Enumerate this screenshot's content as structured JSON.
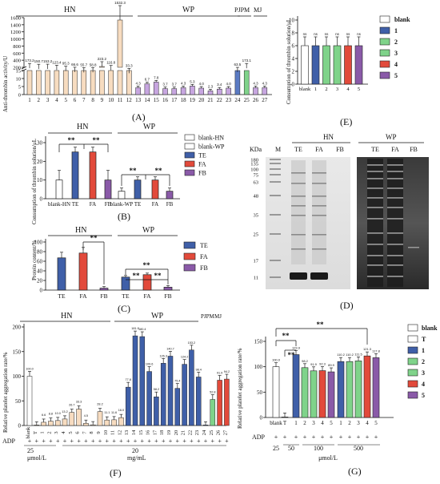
{
  "colors": {
    "blue": "#3f5fa8",
    "red": "#e24a3b",
    "green": "#7fd38a",
    "orange": "#e58a3a",
    "purple": "#8a5aa8",
    "bar_light": "#f7dcc0",
    "bar_edge": "#222222",
    "gel_dark": "#1a1a1a"
  },
  "chart_data": [
    {
      "panel": "A",
      "type": "bar",
      "groups": [
        "HN",
        "WP",
        "PJPM",
        "MJ"
      ],
      "ylabel": "Anti-thrombin activity/U",
      "yticks_upper": [
        200,
        400,
        600,
        800,
        1000,
        1200,
        1400,
        1600
      ],
      "yticks_lower": [
        0,
        5,
        10,
        15
      ],
      "categories": [
        "1",
        "2",
        "3",
        "4",
        "5",
        "6",
        "7",
        "8",
        "9",
        "10",
        "11",
        "12",
        "13",
        "14",
        "15",
        "16",
        "17",
        "18",
        "19",
        "20",
        "21",
        "22",
        "23",
        "24",
        "25",
        "26",
        "27"
      ],
      "values": [
        173.2,
        150.7,
        153.2,
        123.4,
        95.3,
        66.6,
        55.7,
        58.8,
        223.2,
        116.8,
        1532.3,
        33.3,
        4.3,
        6.7,
        7.8,
        3.7,
        3.7,
        4.3,
        5.3,
        4.0,
        2.3,
        3.4,
        4.0,
        63.5,
        173.1,
        4.3,
        4.3
      ],
      "value_labels": [
        "173.2",
        "150.7",
        "153.2",
        "123.4",
        "95.3",
        "66.6",
        "55.7",
        "58.8",
        "223.2",
        "116.8",
        "1532.3",
        "33.3",
        "4.3",
        "6.7",
        "7.8",
        "3.7",
        "3.7",
        "4.3",
        "5.3",
        "4.0",
        "2.3",
        "3.4",
        "4.0",
        "63.5",
        "173.1",
        "4.3",
        "4.3"
      ],
      "label": "(A)"
    },
    {
      "panel": "E",
      "type": "bar",
      "ylabel": "Consumption of thrombin solution/μL",
      "categories": [
        "blank",
        "1",
        "2",
        "3",
        "4",
        "5"
      ],
      "values": [
        6,
        6,
        6,
        6,
        6,
        6
      ],
      "legend": [
        "blank",
        "1",
        "2",
        "3",
        "4",
        "5"
      ],
      "ylim": [
        0,
        10
      ],
      "yticks": [
        0,
        2,
        4,
        6,
        8,
        10
      ],
      "sig": "ns",
      "label": "(E)"
    },
    {
      "panel": "B",
      "type": "bar",
      "groups": [
        "HN",
        "WP"
      ],
      "ylabel": "Consumption of thrombin solution/μL",
      "categories": [
        "blank-HN",
        "TE",
        "FA",
        "FB",
        "blank-WP",
        "TE",
        "FA",
        "FB"
      ],
      "values": [
        10,
        25,
        25,
        10,
        4,
        10,
        10,
        4
      ],
      "ylim": [
        0,
        30
      ],
      "yticks": [
        0,
        10,
        20,
        30
      ],
      "legend": [
        "blank-HN",
        "blank-WP",
        "TE",
        "FA",
        "FB"
      ],
      "sig": "**",
      "label": "(B)"
    },
    {
      "panel": "C",
      "type": "bar",
      "groups": [
        "HN",
        "WP"
      ],
      "ylabel": "Protein content/%",
      "categories": [
        "TE",
        "FA",
        "FB",
        "TE",
        "FA",
        "FB"
      ],
      "values": [
        67,
        77,
        4,
        27,
        32,
        6
      ],
      "ylim": [
        0,
        100
      ],
      "yticks": [
        0,
        20,
        40,
        60,
        80,
        100
      ],
      "legend": [
        "TE",
        "FA",
        "FB"
      ],
      "sig": "**",
      "label": "(C)"
    },
    {
      "panel": "F",
      "type": "bar",
      "groups": [
        "HN",
        "WP",
        "PJPM",
        "MJ"
      ],
      "ylabel": "Relative platelet aggregation rate/%",
      "categories": [
        "blank",
        "T",
        "1",
        "2",
        "3",
        "4",
        "5",
        "6",
        "7",
        "8",
        "9",
        "10",
        "11",
        "12",
        "13",
        "14",
        "15",
        "16",
        "17",
        "18",
        "19",
        "20",
        "21",
        "22",
        "23",
        "24",
        "25",
        "26",
        "27"
      ],
      "values": [
        100.0,
        1,
        6.6,
        8.8,
        10.0,
        13.2,
        26.7,
        33.3,
        4.5,
        1.4,
        28.2,
        11.1,
        11.6,
        16.0,
        77.8,
        181.9,
        180.4,
        109.6,
        58.2,
        126.3,
        140.7,
        75.4,
        124.2,
        153.2,
        98.4,
        1.1,
        52.8,
        91.9,
        94.2
      ],
      "value_labels": [
        "100.0",
        "",
        "6.6",
        "8.8",
        "10.0",
        "13.2",
        "26.7",
        "33.3",
        "4.5",
        "",
        "28.2",
        "11.1",
        "11.6",
        "16.0",
        "77.8",
        "181.9",
        "180.4",
        "109.6",
        "58.2",
        "126.3",
        "140.7",
        "75.4",
        "124.2",
        "153.2",
        "98.4",
        "",
        "52.8",
        "91.9",
        "94.2"
      ],
      "ylim": [
        0,
        200
      ],
      "yticks": [
        0,
        50,
        100,
        150,
        200
      ],
      "adp_label": "ADP",
      "dose_labels": [
        "25",
        "μmol/L",
        "20",
        "mg/mL"
      ],
      "label": "(F)"
    },
    {
      "panel": "G",
      "type": "bar",
      "ylabel": "Relative platelet aggregation rate/%",
      "categories": [
        "blank",
        "T",
        "1",
        "2",
        "3",
        "4",
        "5",
        "1",
        "2",
        "3",
        "4",
        "5",
        "1",
        "2",
        "3",
        "4",
        "5"
      ],
      "values": [
        100.0,
        1,
        123.9,
        98.2,
        91.9,
        92.3,
        89.9,
        110.2,
        110.2,
        111.5,
        121.3,
        117.8,
        0,
        0,
        0,
        0,
        0
      ],
      "value_labels": [
        "100.0",
        "",
        "123.9",
        "98.2",
        "91.9",
        "92.3",
        "89.9",
        "110.2",
        "110.2",
        "111.5",
        "121.3",
        "117.8",
        "",
        "",
        "",
        "",
        ""
      ],
      "ylim": [
        0,
        150
      ],
      "yticks": [
        0,
        50,
        100,
        150
      ],
      "legend": [
        "blank",
        "T",
        "1",
        "2",
        "3",
        "4",
        "5"
      ],
      "adp_label": "ADP",
      "dose_labels": [
        "25",
        "50",
        "100",
        "500",
        "μmol/L"
      ],
      "sig": "**",
      "label": "(G)"
    }
  ],
  "gel": {
    "unit": "KDa",
    "markers": [
      "180",
      "135",
      "100",
      "75",
      "63",
      "48",
      "35",
      "25",
      "17",
      "11"
    ],
    "lane_M": "M",
    "groups": [
      "HN",
      "WP"
    ],
    "lanes": [
      "TE",
      "FA",
      "FB",
      "TE",
      "FA",
      "FB"
    ],
    "label": "(D)"
  }
}
